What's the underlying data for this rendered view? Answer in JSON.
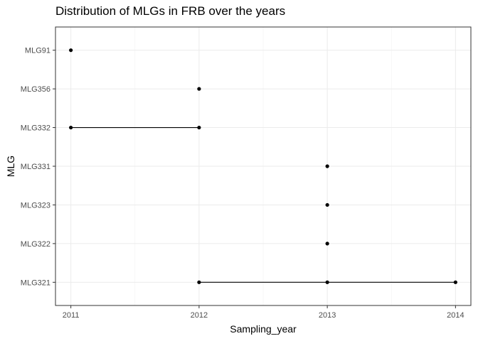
{
  "chart_data": {
    "type": "scatter",
    "title": "Distribution of MLGs in FRB over the years",
    "xlabel": "Sampling_year",
    "ylabel": "MLG",
    "x_ticks": [
      2011,
      2012,
      2013,
      2014
    ],
    "xlim": [
      2010.88,
      2014.12
    ],
    "categories": [
      "MLG321",
      "MLG322",
      "MLG323",
      "MLG331",
      "MLG332",
      "MLG356",
      "MLG91"
    ],
    "grid": true,
    "legend": "none",
    "point_color": "#000000",
    "series": [
      {
        "category": "MLG91",
        "x": [
          2011
        ]
      },
      {
        "category": "MLG356",
        "x": [
          2012
        ]
      },
      {
        "category": "MLG332",
        "x": [
          2011,
          2012
        ]
      },
      {
        "category": "MLG331",
        "x": [
          2013
        ]
      },
      {
        "category": "MLG323",
        "x": [
          2013
        ]
      },
      {
        "category": "MLG322",
        "x": [
          2013
        ]
      },
      {
        "category": "MLG321",
        "x": [
          2012,
          2013,
          2014
        ]
      }
    ]
  }
}
